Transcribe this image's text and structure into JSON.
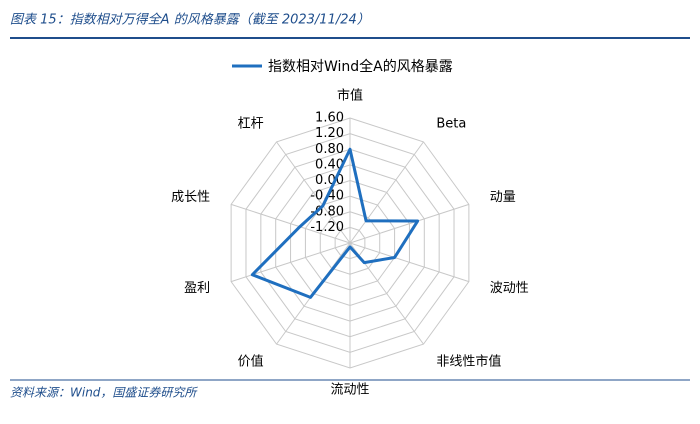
{
  "header": {
    "title": "图表 15：指数相对万得全A 的风格暴露（截至 2023/11/24）"
  },
  "chart_data": {
    "type": "radar",
    "categories": [
      "市值",
      "Beta",
      "动量",
      "波动性",
      "非线性市值",
      "流动性",
      "价值",
      "盈利",
      "成长性",
      "杠杆"
    ],
    "series": [
      {
        "name": "指数相对Wind全A的风格暴露",
        "color": "#1f6fbf",
        "values": [
          0.8,
          -0.9,
          0.22,
          -0.4,
          -0.98,
          -1.5,
          0.12,
          1.03,
          -0.25,
          -0.42
        ]
      }
    ],
    "ylim": [
      -1.6,
      1.6
    ],
    "yticks": [
      {
        "value": 1.6,
        "label": "1.60"
      },
      {
        "value": 1.2,
        "label": "1.20"
      },
      {
        "value": 0.8,
        "label": "0.80"
      },
      {
        "value": 0.4,
        "label": "0.40"
      },
      {
        "value": 0,
        "label": "0.00"
      },
      {
        "value": -0.4,
        "label": "-0.40"
      },
      {
        "value": -0.8,
        "label": "-0.80"
      },
      {
        "value": -1.2,
        "label": "-1.20"
      }
    ],
    "grid": true,
    "legend": "top"
  },
  "footer": {
    "source": "资料来源：Wind，国盛证券研究所"
  }
}
